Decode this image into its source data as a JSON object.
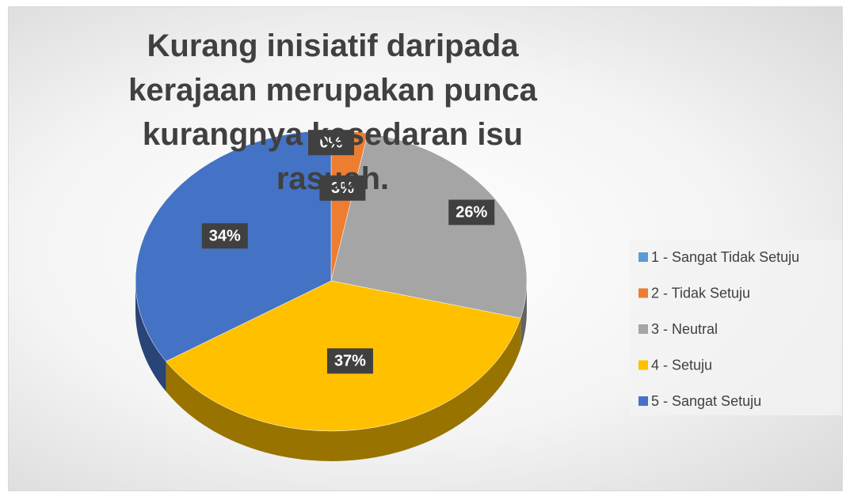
{
  "chart_data": {
    "type": "pie",
    "title": "Kurang inisiatif daripada kerajaan merupakan punca kurangnya kesedaran isu rasuah.",
    "categories": [
      "1 - Sangat Tidak Setuju",
      "2 - Tidak Setuju",
      "3 - Neutral",
      "4 - Setuju",
      "5 - Sangat Setuju"
    ],
    "values": [
      0,
      3,
      26,
      37,
      34
    ],
    "value_labels": [
      "0%",
      "3%",
      "26%",
      "37%",
      "34%"
    ],
    "colors": [
      "#5b9bd5",
      "#ed7d31",
      "#a5a5a5",
      "#ffc000",
      "#4472c4"
    ],
    "legend": "right",
    "three_d": true
  }
}
